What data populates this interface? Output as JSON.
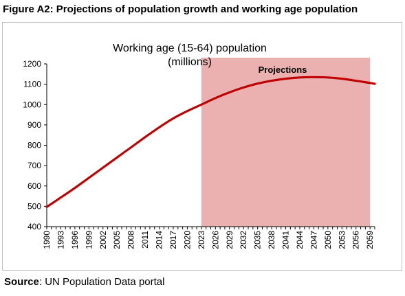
{
  "figure": {
    "title": "Figure A2: Projections of population growth and working age population",
    "source_label": "Source",
    "source_text": ": UN Population Data portal"
  },
  "chart_data": {
    "type": "line",
    "title_line1": "Working age (15-64) population",
    "title_line2": "(millions)",
    "xlabel": "",
    "ylabel": "",
    "ylim": [
      400,
      1200
    ],
    "yticks": [
      400,
      500,
      600,
      700,
      800,
      900,
      1000,
      1100,
      1200
    ],
    "xticks": [
      1990,
      1993,
      1996,
      1999,
      2002,
      2005,
      2008,
      2011,
      2014,
      2017,
      2020,
      2023,
      2026,
      2029,
      2032,
      2035,
      2038,
      2041,
      2044,
      2047,
      2050,
      2053,
      2056,
      2059
    ],
    "xlim": [
      1990,
      2060
    ],
    "grid": false,
    "shaded_region": {
      "from": 2023,
      "to": 2059,
      "label": "Projections",
      "color": "#ebb0b0"
    },
    "series": [
      {
        "color": "#c00000",
        "x": [
          1990,
          1993,
          1996,
          1999,
          2002,
          2005,
          2008,
          2011,
          2014,
          2017,
          2020,
          2023,
          2026,
          2029,
          2032,
          2035,
          2038,
          2041,
          2044,
          2047,
          2050,
          2053,
          2056,
          2059,
          2060
        ],
        "values": [
          497,
          543,
          590,
          640,
          690,
          740,
          790,
          840,
          888,
          932,
          968,
          1000,
          1032,
          1060,
          1084,
          1103,
          1117,
          1127,
          1133,
          1135,
          1133,
          1127,
          1117,
          1106,
          1102
        ]
      }
    ]
  }
}
